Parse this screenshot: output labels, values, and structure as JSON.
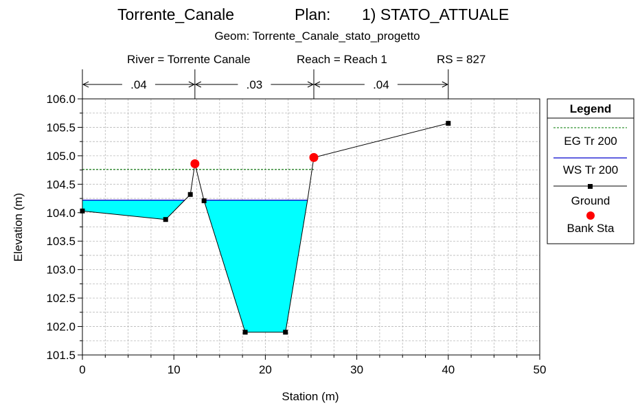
{
  "header": {
    "river_name": "Torrente_Canale",
    "plan_label": "Plan:",
    "plan_name": "1) STATO_ATTUALE",
    "geom": "Geom: Torrente_Canale_stato_progetto",
    "river": "River = Torrente Canale",
    "reach": "Reach = Reach 1",
    "rs": "RS = 827"
  },
  "chart_data": {
    "type": "line",
    "xlabel": "Station (m)",
    "ylabel": "Elevation (m)",
    "xlim": [
      0,
      50
    ],
    "ylim": [
      101.5,
      106.0
    ],
    "xticks": [
      "0",
      "10",
      "20",
      "30",
      "40",
      "50"
    ],
    "yticks": [
      "101.5",
      "102.0",
      "102.5",
      "103.0",
      "103.5",
      "104.0",
      "104.5",
      "105.0",
      "105.5",
      "106.0"
    ],
    "grid": true,
    "legend_placement": "right",
    "manning": [
      {
        "label": ".04",
        "from": 0,
        "to": 12.3
      },
      {
        "label": ".03",
        "from": 12.3,
        "to": 25.3
      },
      {
        "label": ".04",
        "from": 25.3,
        "to": 40
      }
    ],
    "ground": [
      [
        0,
        104.03
      ],
      [
        9.1,
        103.88
      ],
      [
        11.8,
        104.32
      ],
      [
        12.3,
        104.86
      ],
      [
        13.3,
        104.21
      ],
      [
        17.8,
        101.9
      ],
      [
        22.2,
        101.9
      ],
      [
        24.6,
        104.21
      ],
      [
        25.3,
        104.97
      ],
      [
        40,
        105.57
      ]
    ],
    "ground_markers": [
      [
        0,
        104.03
      ],
      [
        9.1,
        103.88
      ],
      [
        11.8,
        104.32
      ],
      [
        13.3,
        104.21
      ],
      [
        17.8,
        101.9
      ],
      [
        22.2,
        101.9
      ],
      [
        40,
        105.57
      ]
    ],
    "bank_stations": [
      [
        12.3,
        104.86
      ],
      [
        25.3,
        104.97
      ]
    ],
    "ws_elev": 104.22,
    "eg_elev": 104.76,
    "eg_range": [
      0,
      25.3
    ],
    "ws_range": [
      0,
      24.6
    ],
    "colors": {
      "water": "#00ffff",
      "ws": "#0000cc",
      "eg": "#007a00",
      "ground": "#000000",
      "bank": "#ff0000",
      "grid": "#b8b8b8"
    },
    "series": [
      {
        "name": "EG Tr 200"
      },
      {
        "name": "WS Tr 200"
      },
      {
        "name": "Ground"
      },
      {
        "name": "Bank Sta"
      }
    ],
    "legend_title": "Legend"
  }
}
